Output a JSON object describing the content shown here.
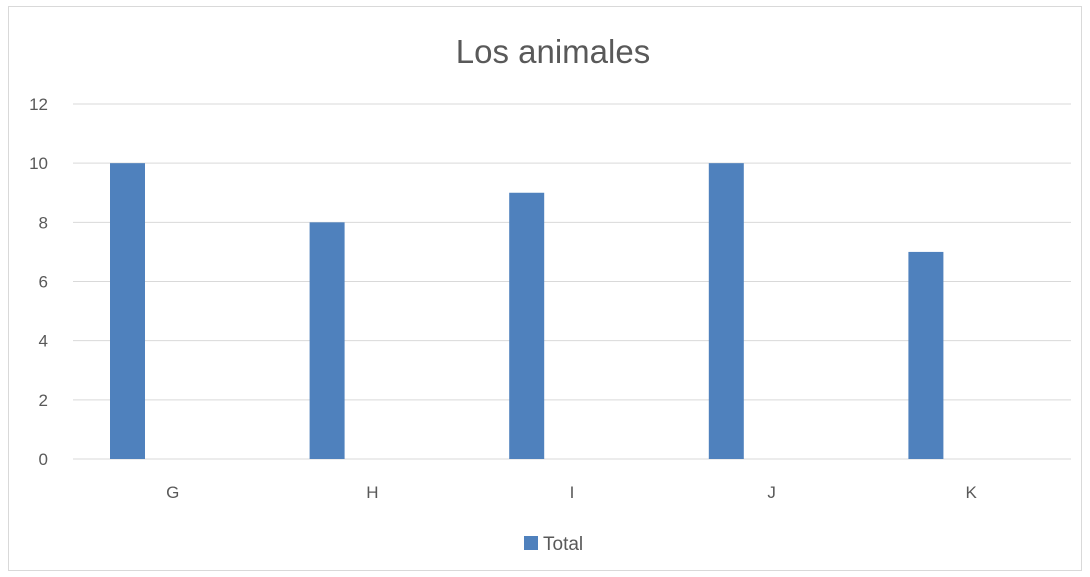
{
  "chart_data": {
    "type": "bar",
    "title": "Los animales",
    "categories": [
      "G",
      "H",
      "I",
      "J",
      "K"
    ],
    "series": [
      {
        "name": "Total",
        "values": [
          10,
          8,
          9,
          10,
          7
        ]
      }
    ],
    "ylim": [
      0,
      12
    ],
    "yticks": [
      0,
      2,
      4,
      6,
      8,
      10,
      12
    ],
    "grid": true,
    "legend_position": "bottom",
    "colors": {
      "bar": "#4f81bd",
      "grid": "#d9d9d9",
      "text": "#595959"
    }
  }
}
